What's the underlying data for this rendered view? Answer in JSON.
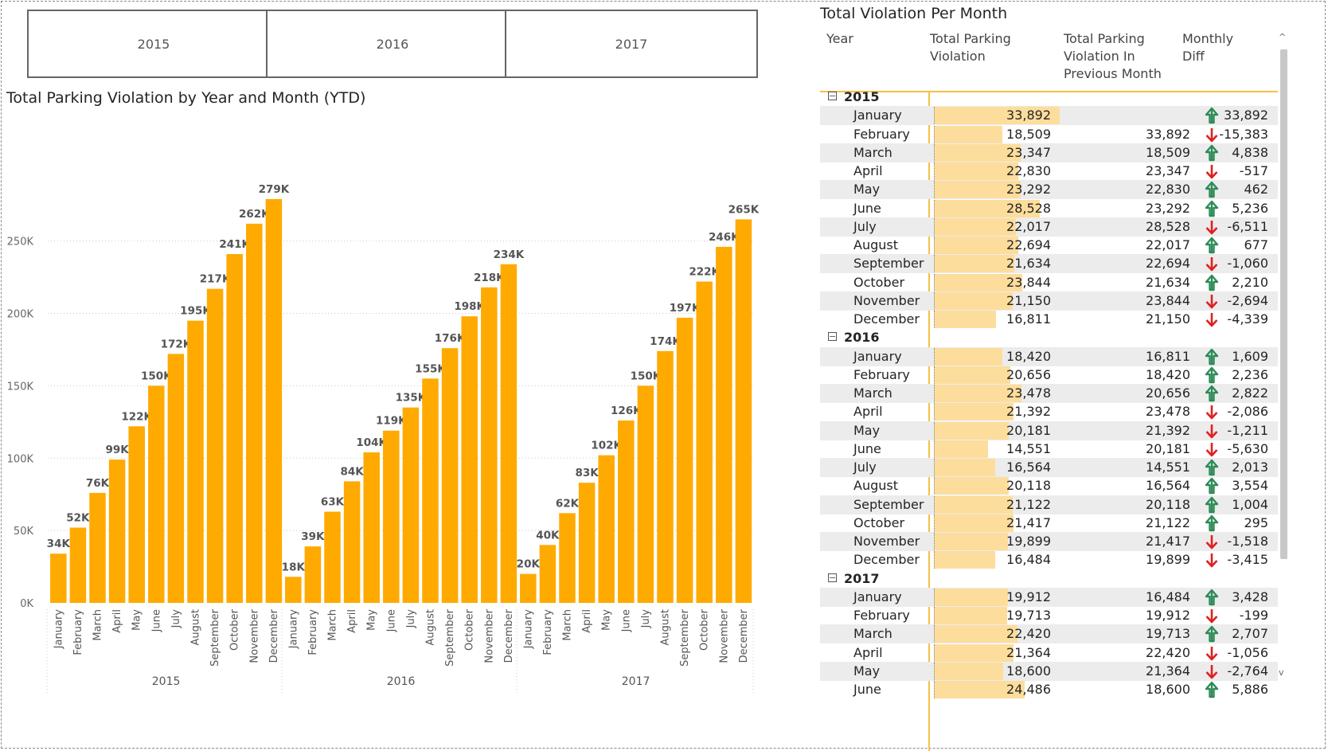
{
  "slicers": [
    "2015",
    "2016",
    "2017"
  ],
  "colors": {
    "bar": "#ffaa00",
    "table_bar": "#fddd9c",
    "up": "#2e8b57",
    "down": "#e02020",
    "accent_line": "#f5c046"
  },
  "chart_data": {
    "type": "bar",
    "title": "Total Parking Violation by Year and Month (YTD)",
    "xlabel": "",
    "ylabel": "",
    "ylim": [
      0,
      290000
    ],
    "yticks": [
      "0K",
      "50K",
      "100K",
      "150K",
      "200K",
      "250K"
    ],
    "grid": true,
    "groups": [
      {
        "year": "2015",
        "months": [
          "January",
          "February",
          "March",
          "April",
          "May",
          "June",
          "July",
          "August",
          "September",
          "October",
          "November",
          "December"
        ],
        "values": [
          34000,
          52000,
          76000,
          99000,
          122000,
          150000,
          172000,
          195000,
          217000,
          241000,
          262000,
          279000
        ],
        "labels": [
          "34K",
          "52K",
          "76K",
          "99K",
          "122K",
          "150K",
          "172K",
          "195K",
          "217K",
          "241K",
          "262K",
          "279K"
        ]
      },
      {
        "year": "2016",
        "months": [
          "January",
          "February",
          "March",
          "April",
          "May",
          "June",
          "July",
          "August",
          "September",
          "October",
          "November",
          "December"
        ],
        "values": [
          18000,
          39000,
          63000,
          84000,
          104000,
          119000,
          135000,
          155000,
          176000,
          198000,
          218000,
          234000
        ],
        "labels": [
          "18K",
          "39K",
          "63K",
          "84K",
          "104K",
          "119K",
          "135K",
          "155K",
          "176K",
          "198K",
          "218K",
          "234K"
        ]
      },
      {
        "year": "2017",
        "months": [
          "January",
          "February",
          "March",
          "April",
          "May",
          "June",
          "July",
          "August",
          "September",
          "October",
          "November",
          "December"
        ],
        "values": [
          20000,
          40000,
          62000,
          83000,
          102000,
          126000,
          150000,
          174000,
          197000,
          222000,
          246000,
          265000
        ],
        "labels": [
          "20K",
          "40K",
          "62K",
          "83K",
          "102K",
          "126K",
          "150K",
          "174K",
          "197K",
          "222K",
          "246K",
          "265K"
        ]
      }
    ]
  },
  "matrix": {
    "title": "Total Violation Per Month",
    "columns": {
      "year": "Year",
      "total": [
        "Total Parking",
        "Violation"
      ],
      "previous": [
        "Total Parking",
        "Violation In",
        "Previous Month"
      ],
      "diff": [
        "Monthly",
        "Diff"
      ]
    },
    "bar_max": 33892,
    "groups": [
      {
        "year": "2015",
        "expander": "−",
        "rows": [
          {
            "month": "January",
            "total": "33,892",
            "total_num": 33892,
            "prev": "",
            "diff": "33,892",
            "dir": "up"
          },
          {
            "month": "February",
            "total": "18,509",
            "total_num": 18509,
            "prev": "33,892",
            "diff": "-15,383",
            "dir": "down"
          },
          {
            "month": "March",
            "total": "23,347",
            "total_num": 23347,
            "prev": "18,509",
            "diff": "4,838",
            "dir": "up"
          },
          {
            "month": "April",
            "total": "22,830",
            "total_num": 22830,
            "prev": "23,347",
            "diff": "-517",
            "dir": "down"
          },
          {
            "month": "May",
            "total": "23,292",
            "total_num": 23292,
            "prev": "22,830",
            "diff": "462",
            "dir": "up"
          },
          {
            "month": "June",
            "total": "28,528",
            "total_num": 28528,
            "prev": "23,292",
            "diff": "5,236",
            "dir": "up"
          },
          {
            "month": "July",
            "total": "22,017",
            "total_num": 22017,
            "prev": "28,528",
            "diff": "-6,511",
            "dir": "down"
          },
          {
            "month": "August",
            "total": "22,694",
            "total_num": 22694,
            "prev": "22,017",
            "diff": "677",
            "dir": "up"
          },
          {
            "month": "September",
            "total": "21,634",
            "total_num": 21634,
            "prev": "22,694",
            "diff": "-1,060",
            "dir": "down"
          },
          {
            "month": "October",
            "total": "23,844",
            "total_num": 23844,
            "prev": "21,634",
            "diff": "2,210",
            "dir": "up"
          },
          {
            "month": "November",
            "total": "21,150",
            "total_num": 21150,
            "prev": "23,844",
            "diff": "-2,694",
            "dir": "down"
          },
          {
            "month": "December",
            "total": "16,811",
            "total_num": 16811,
            "prev": "21,150",
            "diff": "-4,339",
            "dir": "down"
          }
        ]
      },
      {
        "year": "2016",
        "expander": "−",
        "rows": [
          {
            "month": "January",
            "total": "18,420",
            "total_num": 18420,
            "prev": "16,811",
            "diff": "1,609",
            "dir": "up"
          },
          {
            "month": "February",
            "total": "20,656",
            "total_num": 20656,
            "prev": "18,420",
            "diff": "2,236",
            "dir": "up"
          },
          {
            "month": "March",
            "total": "23,478",
            "total_num": 23478,
            "prev": "20,656",
            "diff": "2,822",
            "dir": "up"
          },
          {
            "month": "April",
            "total": "21,392",
            "total_num": 21392,
            "prev": "23,478",
            "diff": "-2,086",
            "dir": "down"
          },
          {
            "month": "May",
            "total": "20,181",
            "total_num": 20181,
            "prev": "21,392",
            "diff": "-1,211",
            "dir": "down"
          },
          {
            "month": "June",
            "total": "14,551",
            "total_num": 14551,
            "prev": "20,181",
            "diff": "-5,630",
            "dir": "down"
          },
          {
            "month": "July",
            "total": "16,564",
            "total_num": 16564,
            "prev": "14,551",
            "diff": "2,013",
            "dir": "up"
          },
          {
            "month": "August",
            "total": "20,118",
            "total_num": 20118,
            "prev": "16,564",
            "diff": "3,554",
            "dir": "up"
          },
          {
            "month": "September",
            "total": "21,122",
            "total_num": 21122,
            "prev": "20,118",
            "diff": "1,004",
            "dir": "up"
          },
          {
            "month": "October",
            "total": "21,417",
            "total_num": 21417,
            "prev": "21,122",
            "diff": "295",
            "dir": "up"
          },
          {
            "month": "November",
            "total": "19,899",
            "total_num": 19899,
            "prev": "21,417",
            "diff": "-1,518",
            "dir": "down"
          },
          {
            "month": "December",
            "total": "16,484",
            "total_num": 16484,
            "prev": "19,899",
            "diff": "-3,415",
            "dir": "down"
          }
        ]
      },
      {
        "year": "2017",
        "expander": "−",
        "rows": [
          {
            "month": "January",
            "total": "19,912",
            "total_num": 19912,
            "prev": "16,484",
            "diff": "3,428",
            "dir": "up"
          },
          {
            "month": "February",
            "total": "19,713",
            "total_num": 19713,
            "prev": "19,912",
            "diff": "-199",
            "dir": "down"
          },
          {
            "month": "March",
            "total": "22,420",
            "total_num": 22420,
            "prev": "19,713",
            "diff": "2,707",
            "dir": "up"
          },
          {
            "month": "April",
            "total": "21,364",
            "total_num": 21364,
            "prev": "22,420",
            "diff": "-1,056",
            "dir": "down"
          },
          {
            "month": "May",
            "total": "18,600",
            "total_num": 18600,
            "prev": "21,364",
            "diff": "-2,764",
            "dir": "down"
          },
          {
            "month": "June",
            "total": "24,486",
            "total_num": 24486,
            "prev": "18,600",
            "diff": "5,886",
            "dir": "up"
          }
        ]
      }
    ],
    "scroll": {
      "up": "^",
      "down": "v"
    }
  }
}
